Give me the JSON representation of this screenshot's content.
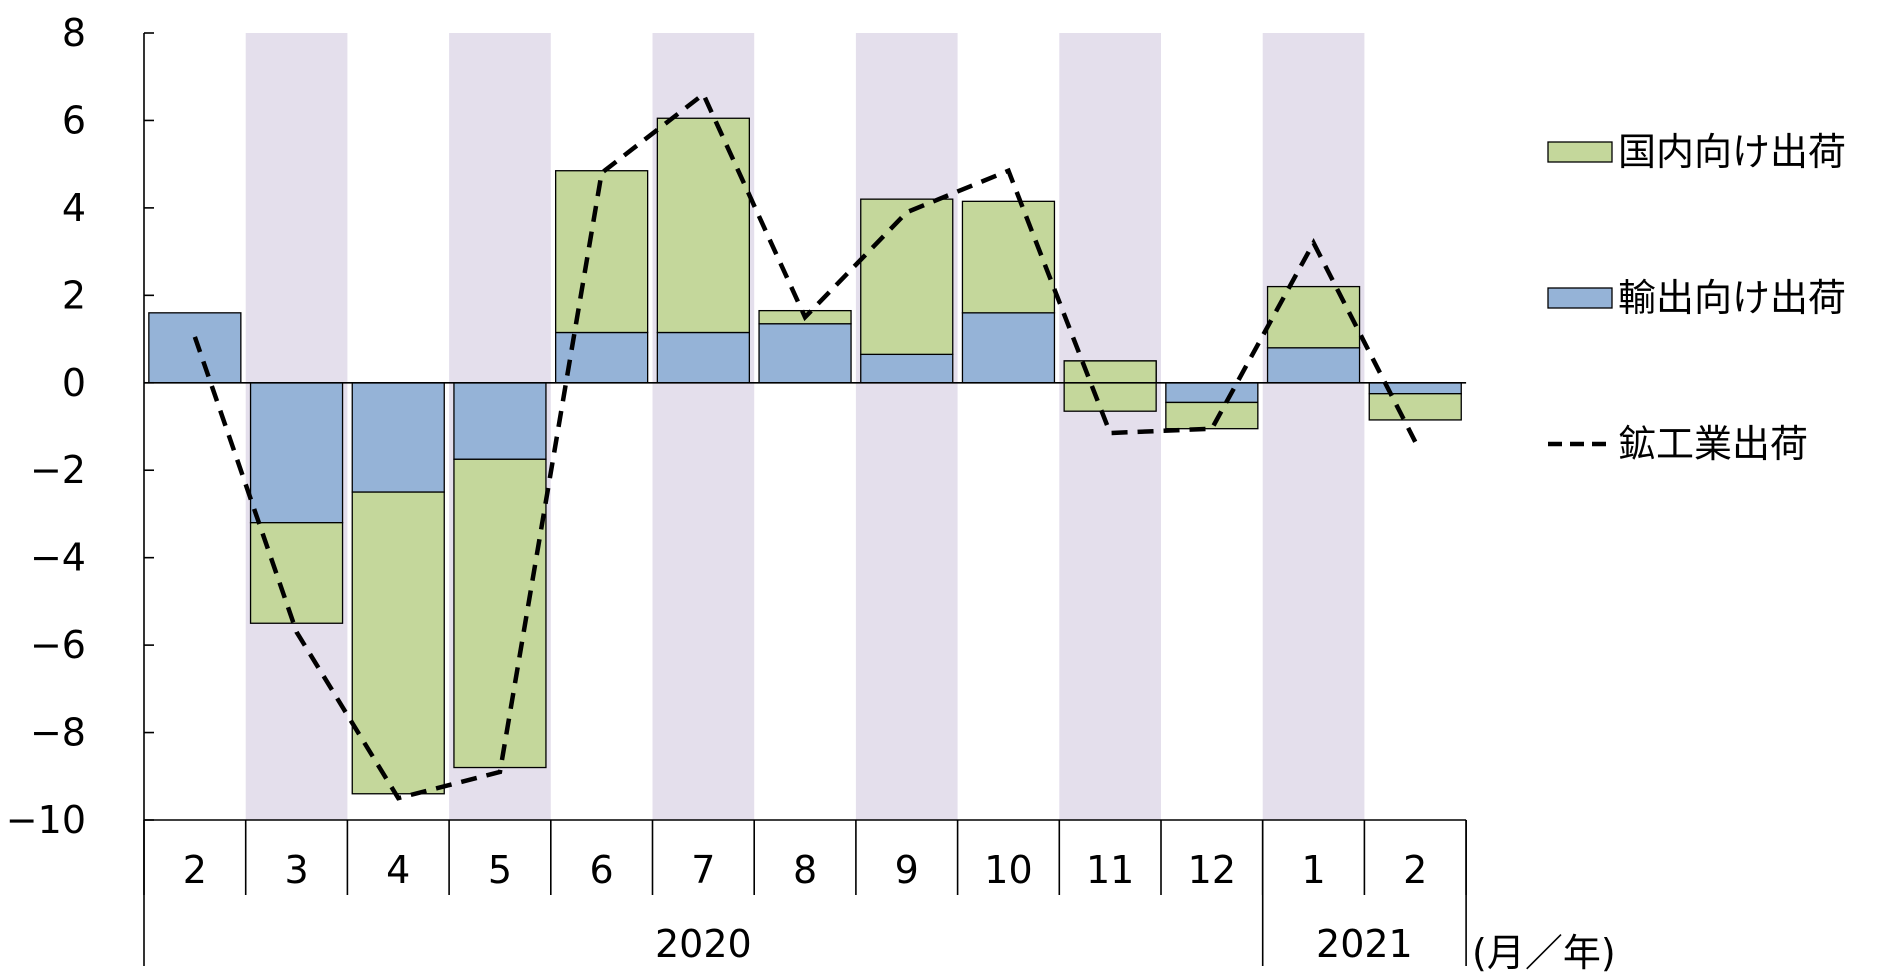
{
  "chart_data": {
    "type": "bar",
    "stacked": true,
    "categories": [
      "2",
      "3",
      "4",
      "5",
      "6",
      "7",
      "8",
      "9",
      "10",
      "11",
      "12",
      "1",
      "2"
    ],
    "years": [
      {
        "label": "2020",
        "from": 0,
        "to": 10
      },
      {
        "label": "2021",
        "from": 11,
        "to": 12
      }
    ],
    "x_unit_label": "(月／年)",
    "ylim": [
      -10,
      8
    ],
    "y_ticks": [
      {
        "value": 8,
        "label": "8"
      },
      {
        "value": 6,
        "label": "6"
      },
      {
        "value": 4,
        "label": "4"
      },
      {
        "value": 2,
        "label": "2"
      },
      {
        "value": 0,
        "label": "0"
      },
      {
        "value": -2,
        "label": "−2"
      },
      {
        "value": -4,
        "label": "−4"
      },
      {
        "value": -6,
        "label": "−6"
      },
      {
        "value": -8,
        "label": "−8"
      },
      {
        "value": -10,
        "label": "−10"
      }
    ],
    "shaded_category_indices": [
      1,
      3,
      5,
      7,
      9,
      11
    ],
    "shade_color": "#e4dfec",
    "series": [
      {
        "name": "輸出向け出荷",
        "kind": "bar",
        "color": "#95b3d7",
        "values": [
          1.6,
          -3.2,
          -2.5,
          -1.75,
          1.15,
          1.15,
          1.35,
          0.65,
          1.6,
          0.5,
          -0.45,
          0.8,
          -0.25
        ]
      },
      {
        "name": "国内向け出荷",
        "kind": "bar",
        "color": "#c4d79b",
        "values": [
          0,
          -2.3,
          -6.9,
          -7.05,
          3.7,
          4.9,
          0.3,
          3.55,
          2.55,
          -1.15,
          -0.6,
          1.4,
          -0.6
        ]
      },
      {
        "name": "鉱工業出荷",
        "kind": "line",
        "style": "dashed",
        "color": "#000000",
        "values": [
          1.05,
          -5.7,
          -9.5,
          -8.9,
          4.8,
          6.6,
          1.5,
          3.9,
          4.85,
          -1.15,
          -1.05,
          3.2,
          -1.35
        ]
      }
    ],
    "legend": [
      {
        "label": "国内向け出荷",
        "kind": "bar",
        "color": "#c4d79b"
      },
      {
        "label": "輸出向け出荷",
        "kind": "bar",
        "color": "#95b3d7"
      },
      {
        "label": "鉱工業出荷",
        "kind": "line"
      }
    ],
    "legend_position": "right",
    "grid": false
  }
}
